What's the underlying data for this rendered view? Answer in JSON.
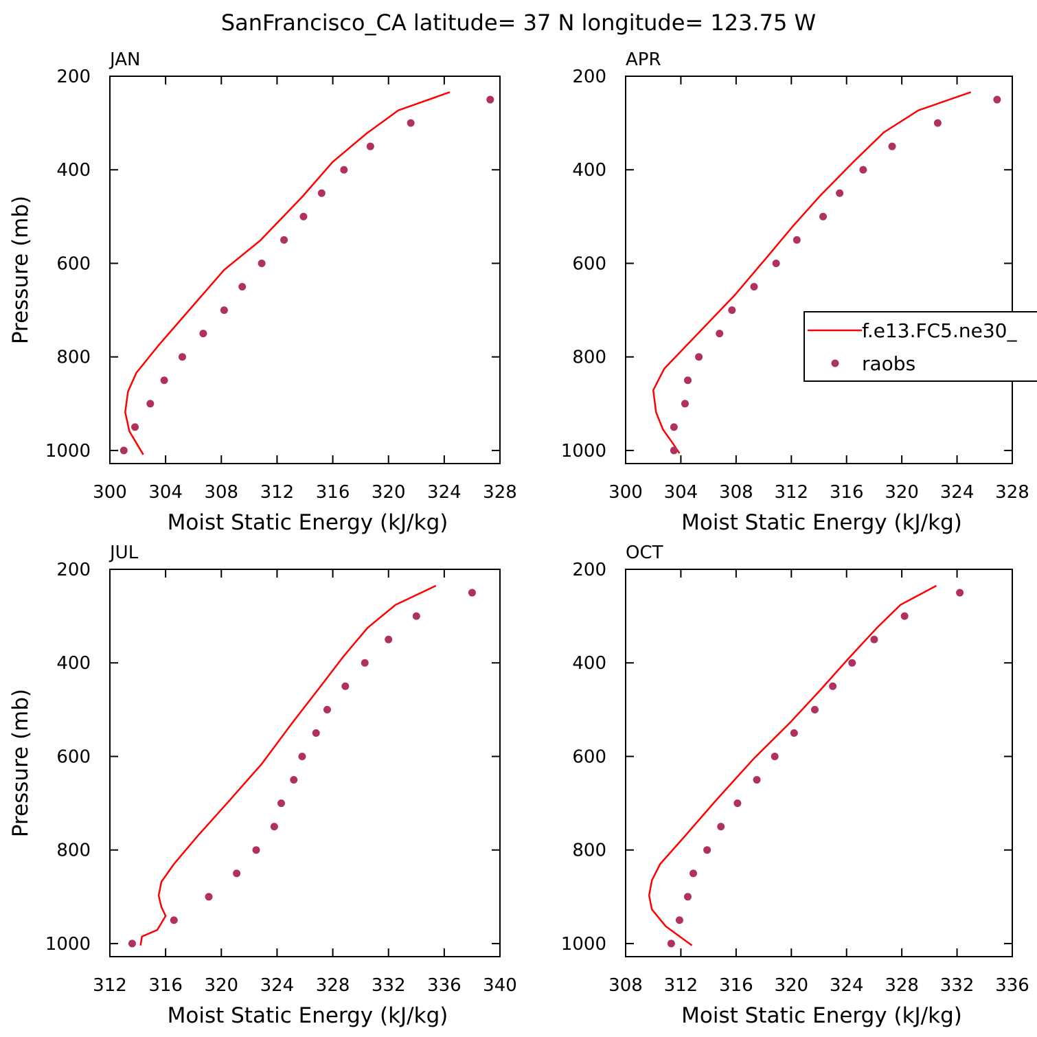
{
  "title": "SanFrancisco_CA  latitude= 37 N longitude= 123.75 W",
  "chart_data": [
    {
      "type": "line",
      "title": "JAN",
      "x_label": "Moist Static Energy (kJ/kg)",
      "y_label": "Pressure (mb)",
      "xlim": [
        300,
        328
      ],
      "xticks": [
        300,
        304,
        308,
        312,
        316,
        320,
        324,
        328
      ],
      "ylim": [
        1028,
        200
      ],
      "yticks": [
        200,
        400,
        600,
        800,
        1000
      ],
      "legend": false,
      "series": [
        {
          "type": "line",
          "color": "#ff0000",
          "x": [
            324.4,
            320.7,
            318.4,
            316.0,
            313.8,
            310.8,
            308.2,
            303.5,
            301.9,
            301.3,
            301.1,
            301.4,
            302.4
          ],
          "y": [
            234,
            273,
            323,
            383,
            458,
            551,
            614,
            775,
            834,
            874,
            918,
            959,
            1009
          ]
        },
        {
          "type": "scatter",
          "color": "#b03060",
          "x": [
            327.3,
            321.6,
            318.7,
            316.8,
            315.2,
            313.9,
            312.5,
            310.9,
            309.5,
            308.2,
            306.7,
            305.2,
            303.9,
            302.9,
            301.8,
            301.0
          ],
          "y": [
            250,
            300,
            350,
            400,
            450,
            500,
            550,
            600,
            650,
            700,
            750,
            800,
            850,
            900,
            950,
            1000
          ]
        }
      ]
    },
    {
      "type": "line",
      "title": "APR",
      "x_label": "Moist Static Energy (kJ/kg)",
      "xlim": [
        300,
        328
      ],
      "xticks": [
        300,
        304,
        308,
        312,
        316,
        320,
        324,
        328
      ],
      "ylim": [
        1028,
        200
      ],
      "yticks": [
        200,
        400,
        600,
        800,
        1000
      ],
      "legend": "center right",
      "series": [
        {
          "type": "line",
          "name": "f.e13.FC5.ne30_",
          "color": "#ff0000",
          "x": [
            325.0,
            321.2,
            318.7,
            316.5,
            314.1,
            312.1,
            310.2,
            307.9,
            305.4,
            302.8,
            302.0,
            302.2,
            302.7,
            303.4,
            303.9
          ],
          "y": [
            234,
            273,
            320,
            383,
            455,
            521,
            588,
            668,
            745,
            825,
            871,
            918,
            955,
            984,
            1006
          ]
        },
        {
          "type": "scatter",
          "name": "raobs",
          "color": "#b03060",
          "x": [
            326.9,
            322.6,
            319.3,
            317.2,
            315.5,
            314.3,
            312.4,
            310.9,
            309.3,
            307.7,
            306.8,
            305.3,
            304.5,
            304.3,
            303.5,
            303.5
          ],
          "y": [
            250,
            300,
            350,
            400,
            450,
            500,
            550,
            600,
            650,
            700,
            750,
            800,
            850,
            900,
            950,
            1000
          ]
        }
      ]
    },
    {
      "type": "line",
      "title": "JUL",
      "x_label": "Moist Static Energy (kJ/kg)",
      "y_label": "Pressure (mb)",
      "xlim": [
        312,
        340
      ],
      "xticks": [
        312,
        316,
        320,
        324,
        328,
        332,
        336,
        340
      ],
      "ylim": [
        1028,
        200
      ],
      "yticks": [
        200,
        400,
        600,
        800,
        1000
      ],
      "legend": false,
      "series": [
        {
          "type": "line",
          "color": "#ff0000",
          "x": [
            335.4,
            332.5,
            330.5,
            328.8,
            327.1,
            325.1,
            322.9,
            320.5,
            318.3,
            316.6,
            315.7,
            315.5,
            315.7,
            316.0,
            315.4,
            314.3,
            314.2
          ],
          "y": [
            235,
            276,
            325,
            385,
            451,
            528,
            616,
            697,
            770,
            830,
            868,
            897,
            922,
            941,
            971,
            985,
            1004
          ]
        },
        {
          "type": "scatter",
          "color": "#b03060",
          "x": [
            338.0,
            334.0,
            332.0,
            330.3,
            328.9,
            327.6,
            326.8,
            325.8,
            325.2,
            324.3,
            323.8,
            322.5,
            321.1,
            319.1,
            316.6,
            313.6
          ],
          "y": [
            250,
            300,
            350,
            400,
            450,
            500,
            550,
            600,
            650,
            700,
            750,
            800,
            850,
            900,
            950,
            1000
          ]
        }
      ]
    },
    {
      "type": "line",
      "title": "OCT",
      "x_label": "Moist Static Energy (kJ/kg)",
      "xlim": [
        308,
        336
      ],
      "xticks": [
        308,
        312,
        316,
        320,
        324,
        328,
        332,
        336
      ],
      "ylim": [
        1028,
        200
      ],
      "yticks": [
        200,
        400,
        600,
        800,
        1000
      ],
      "legend": false,
      "series": [
        {
          "type": "line",
          "color": "#ff0000",
          "x": [
            330.5,
            327.9,
            326.2,
            324.1,
            322.1,
            319.9,
            317.3,
            314.6,
            312.3,
            310.5,
            309.9,
            309.7,
            309.9,
            310.9,
            312.8
          ],
          "y": [
            235,
            276,
            325,
            392,
            458,
            528,
            604,
            692,
            770,
            830,
            865,
            897,
            927,
            963,
            1004
          ]
        },
        {
          "type": "scatter",
          "color": "#b03060",
          "x": [
            332.2,
            328.2,
            326.0,
            324.4,
            323.0,
            321.7,
            320.2,
            318.8,
            317.5,
            316.1,
            314.9,
            313.9,
            312.9,
            312.5,
            311.9,
            311.3
          ],
          "y": [
            250,
            300,
            350,
            400,
            450,
            500,
            550,
            600,
            650,
            700,
            750,
            800,
            850,
            900,
            950,
            1000
          ]
        }
      ]
    }
  ]
}
